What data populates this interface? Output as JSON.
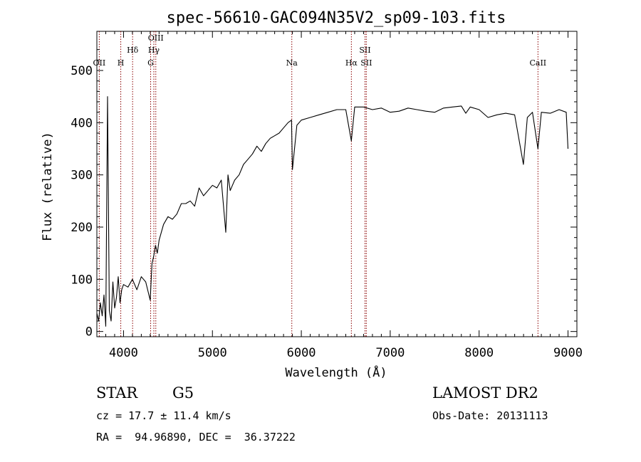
{
  "chart_data": {
    "type": "line",
    "title": "spec-56610-GAC094N35V2_sp09-103.fits",
    "xlabel": "Wavelength (Å)",
    "ylabel": "Flux (relative)",
    "xlim": [
      3700,
      9100
    ],
    "ylim": [
      -10,
      575
    ],
    "xticks": [
      4000,
      5000,
      6000,
      7000,
      8000,
      9000
    ],
    "yticks": [
      0,
      100,
      200,
      300,
      400,
      500
    ],
    "grid": false,
    "line_color": "#000000",
    "marker_color": "#8b0000",
    "series": [
      {
        "x": [
          3700,
          3720,
          3740,
          3760,
          3780,
          3800,
          3820,
          3840,
          3860,
          3880,
          3900,
          3920,
          3940,
          3960,
          3980,
          4000,
          4050,
          4100,
          4150,
          4200,
          4250,
          4300,
          4320,
          4340,
          4360,
          4380,
          4400,
          4450,
          4500,
          4550,
          4600,
          4650,
          4700,
          4750,
          4800,
          4850,
          4900,
          4950,
          5000,
          5050,
          5100,
          5150,
          5175,
          5200,
          5250,
          5300,
          5350,
          5400,
          5450,
          5500,
          5550,
          5600,
          5650,
          5700,
          5750,
          5800,
          5850,
          5890,
          5900,
          5950,
          6000,
          6100,
          6200,
          6300,
          6400,
          6500,
          6563,
          6600,
          6700,
          6800,
          6900,
          7000,
          7100,
          7200,
          7300,
          7400,
          7500,
          7600,
          7700,
          7800,
          7850,
          7900,
          8000,
          8100,
          8200,
          8300,
          8400,
          8498,
          8542,
          8600,
          8662,
          8700,
          8800,
          8900,
          8980,
          9000
        ],
        "y": [
          35,
          20,
          55,
          30,
          70,
          10,
          450,
          40,
          20,
          95,
          45,
          65,
          105,
          55,
          80,
          90,
          85,
          100,
          80,
          105,
          95,
          60,
          130,
          145,
          165,
          150,
          175,
          205,
          220,
          215,
          225,
          245,
          245,
          250,
          240,
          275,
          260,
          270,
          280,
          275,
          290,
          190,
          300,
          270,
          290,
          300,
          320,
          330,
          340,
          355,
          345,
          360,
          370,
          375,
          380,
          390,
          400,
          405,
          310,
          395,
          405,
          410,
          415,
          420,
          425,
          425,
          365,
          430,
          430,
          425,
          428,
          420,
          422,
          428,
          425,
          422,
          420,
          428,
          430,
          432,
          418,
          430,
          425,
          410,
          415,
          418,
          415,
          320,
          410,
          420,
          350,
          420,
          418,
          425,
          420,
          350
        ]
      }
    ],
    "lines": [
      {
        "label": "OII",
        "x": 3727
      },
      {
        "label": "H",
        "x": 3969
      },
      {
        "label": "Hδ",
        "x": 4102
      },
      {
        "label": "G",
        "x": 4305
      },
      {
        "label": "Hγ",
        "x": 4341
      },
      {
        "label": "OIII",
        "x": 4363
      },
      {
        "label": "Na",
        "x": 5893
      },
      {
        "label": "Hα",
        "x": 6563
      },
      {
        "label": "SII",
        "x": 6716
      },
      {
        "label": "SII",
        "x": 6731
      },
      {
        "label": "CaII",
        "x": 8662
      }
    ]
  },
  "info": {
    "object_class": "STAR",
    "subclass": "G5",
    "survey": "LAMOST DR2",
    "cz": "cz = 17.7 ± 11.4 km/s",
    "obs_date": "Obs-Date: 20131113",
    "coords": "RA =  94.96890, DEC =  36.37222"
  }
}
